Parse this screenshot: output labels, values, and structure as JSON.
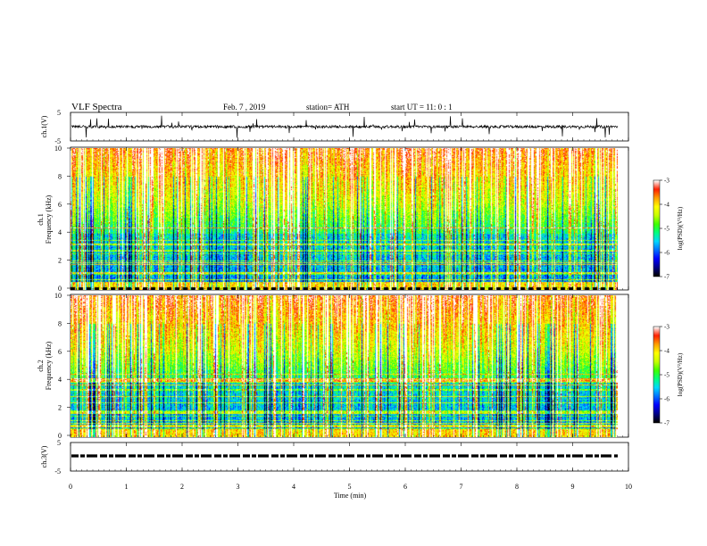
{
  "header": {
    "title": "VLF  Spectra",
    "date": "Feb. 7  , 2019",
    "station": "station= ATH",
    "start": "start  UT  =    11: 0   : 1"
  },
  "chart_data": [
    {
      "panel": "ch1-waveform",
      "type": "line",
      "ylabel": "ch.1(V)",
      "ylim": [
        -5,
        5
      ],
      "yticks": [
        "5",
        "-5"
      ],
      "xlim": [
        0,
        10
      ],
      "note_signal": "noisy waveform around 0 V with spikes up to about ±4 V",
      "color": "#000000"
    },
    {
      "panel": "ch1-spectrogram",
      "type": "heatmap",
      "ylabel": "ch.1\nFrequency (kHz)",
      "ylabel_line1": "ch.1",
      "ylabel_line2": "Frequency (kHz)",
      "ylim": [
        0,
        10
      ],
      "yticks": [
        "0",
        "2",
        "4",
        "6",
        "8",
        "10"
      ],
      "xlim": [
        0,
        9.8
      ],
      "color_scale": {
        "label": "log(PSD)(V²/Hz)",
        "range": [
          -7,
          -3
        ],
        "ticks": [
          "-3",
          "-4",
          "-5",
          "-6",
          "-7"
        ]
      },
      "features": "broadband impulsive emissions (sferics) across the full band; background log PSD near -6 below ~4 kHz"
    },
    {
      "panel": "ch2-spectrogram",
      "type": "heatmap",
      "ylabel_line1": "ch.2",
      "ylabel_line2": "Frequency (kHz)",
      "ylim": [
        0,
        10
      ],
      "yticks": [
        "0",
        "2",
        "4",
        "6",
        "8",
        "10"
      ],
      "xlim": [
        0,
        9.8
      ],
      "color_scale": {
        "label": "log(PSD)(V²/Hz)",
        "range": [
          -7,
          -3
        ],
        "ticks": [
          "-3",
          "-4",
          "-5",
          "-6",
          "-7"
        ]
      }
    },
    {
      "panel": "ch3-waveform",
      "type": "line",
      "ylabel": "ch.3(V)",
      "ylim": [
        -5,
        5
      ],
      "yticks": [
        "5",
        "-5"
      ],
      "xlim": [
        0,
        10
      ],
      "note_signal": "dashed marker line near +2 V",
      "color": "#000000"
    }
  ],
  "x_axis": {
    "label": "Time  (min)",
    "ticks": [
      "0",
      "1",
      "2",
      "3",
      "4",
      "5",
      "6",
      "7",
      "8",
      "9",
      "10"
    ],
    "range": [
      0,
      10
    ]
  },
  "colormap": [
    "#000000",
    "#00008a",
    "#0000ff",
    "#0070ff",
    "#00d8ff",
    "#00ff80",
    "#40ff00",
    "#c8ff00",
    "#ffff00",
    "#ffa000",
    "#ff2000",
    "#ffffff"
  ]
}
